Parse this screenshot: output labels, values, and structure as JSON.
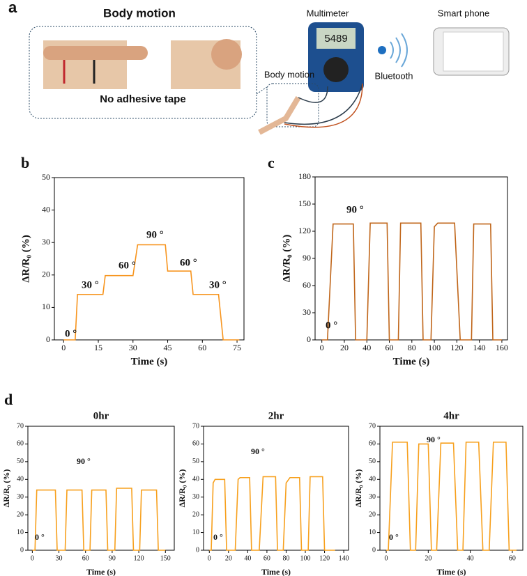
{
  "panel_labels": [
    "a",
    "b",
    "c",
    "d"
  ],
  "diagram": {
    "body_motion_title": "Body motion",
    "no_tape": "No adhesive tape",
    "multimeter": "Multimeter",
    "multimeter_display": "5489",
    "smart_phone": "Smart phone",
    "body_motion_label": "Body motion",
    "bluetooth": "Bluetooth"
  },
  "chart_data": [
    {
      "type": "line",
      "xlabel": "Time (s)",
      "ylabel": "ΔR/R₀ (%)",
      "x": [
        0,
        5,
        6,
        17,
        18,
        30,
        32,
        44,
        45,
        55,
        56,
        67,
        69,
        76
      ],
      "values": [
        0,
        0,
        14,
        14,
        19.8,
        19.8,
        29.3,
        29.3,
        21.2,
        21.2,
        14,
        14,
        0,
        0
      ],
      "color": "#f7941d",
      "xlim": [
        -4,
        78
      ],
      "ylim": [
        0,
        50
      ],
      "xticks": [
        0,
        15,
        30,
        45,
        60,
        75
      ],
      "yticks": [
        0,
        10,
        20,
        30,
        40,
        50
      ],
      "annotations": [
        "0 °",
        "30 °",
        "60 °",
        "90 °",
        "60 °",
        "30 °"
      ]
    },
    {
      "type": "line",
      "xlabel": "Time (s)",
      "ylabel": "ΔR/R₀ (%)",
      "x": [
        0,
        5,
        10,
        28,
        30,
        40,
        43,
        58,
        60,
        68,
        70,
        88,
        90,
        97,
        100,
        103,
        118,
        123,
        133,
        135,
        150,
        152,
        160
      ],
      "values": [
        0,
        0,
        128,
        128,
        0,
        0,
        129,
        129,
        0,
        0,
        129,
        129,
        0,
        0,
        125,
        129,
        129,
        0,
        0,
        128,
        128,
        0,
        0
      ],
      "color": "#c0661a",
      "xlim": [
        -6,
        165
      ],
      "ylim": [
        0,
        180
      ],
      "xticks": [
        0,
        20,
        40,
        60,
        80,
        100,
        120,
        140,
        160
      ],
      "yticks": [
        0,
        30,
        60,
        90,
        120,
        150,
        180
      ],
      "annotations": [
        "90 °",
        "0 °"
      ]
    },
    {
      "type": "line",
      "title": "0hr",
      "xlabel": "Time (s)",
      "ylabel": "ΔR/R₀ (%)",
      "x": [
        0,
        3,
        5,
        26,
        28,
        37,
        39,
        56,
        58,
        65,
        67,
        83,
        85,
        93,
        95,
        112,
        114,
        121,
        123,
        140,
        142,
        150
      ],
      "values": [
        0,
        0,
        34,
        34,
        0,
        0,
        34,
        34,
        0,
        0,
        34,
        34,
        0,
        0,
        35,
        35,
        0,
        0,
        34,
        34,
        0,
        0
      ],
      "color": "#f7a01d",
      "xlim": [
        -5,
        160
      ],
      "ylim": [
        0,
        70
      ],
      "xticks": [
        0,
        30,
        60,
        90,
        120,
        150
      ],
      "yticks": [
        0,
        10,
        20,
        30,
        40,
        50,
        60,
        70
      ],
      "annotations": [
        "90 °",
        "0 °"
      ]
    },
    {
      "type": "line",
      "title": "2hr",
      "xlabel": "Time (s)",
      "ylabel": "ΔR/R₀ (%)",
      "x": [
        0,
        2,
        4,
        6,
        16,
        18,
        27,
        30,
        32,
        42,
        44,
        52,
        56,
        69,
        71,
        77,
        80,
        84,
        94,
        96,
        103,
        105,
        118,
        120,
        131
      ],
      "values": [
        0,
        0,
        38,
        40,
        40,
        0,
        0,
        40,
        41,
        41,
        0,
        0,
        41.5,
        41.5,
        0,
        0,
        38,
        41,
        41,
        0,
        0,
        41.5,
        41.5,
        0,
        0
      ],
      "color": "#f7a01d",
      "xlim": [
        -6,
        145
      ],
      "ylim": [
        0,
        70
      ],
      "xticks": [
        0,
        20,
        40,
        60,
        80,
        100,
        120,
        140
      ],
      "yticks": [
        0,
        10,
        20,
        30,
        40,
        50,
        60,
        70
      ],
      "annotations": [
        "90 °",
        "0 °"
      ]
    },
    {
      "type": "line",
      "title": "4hr",
      "xlabel": "Time (s)",
      "ylabel": "ΔR/R₀ (%)",
      "x": [
        0,
        1,
        3,
        10,
        11.5,
        14,
        15.5,
        20,
        21.5,
        24,
        26,
        32,
        34,
        36.5,
        38,
        44,
        46,
        49,
        51,
        57,
        58.5,
        62
      ],
      "values": [
        0,
        0,
        61,
        61,
        0,
        0,
        60,
        60,
        0,
        0,
        60.5,
        60.5,
        0,
        0,
        61,
        61,
        0,
        0,
        61,
        61,
        0,
        0
      ],
      "color": "#f7a01d",
      "xlim": [
        -3,
        65
      ],
      "ylim": [
        0,
        70
      ],
      "xticks": [
        0,
        20,
        40,
        60
      ],
      "yticks": [
        0,
        10,
        20,
        30,
        40,
        50,
        60,
        70
      ],
      "annotations": [
        "90 °",
        "0 °"
      ]
    }
  ]
}
